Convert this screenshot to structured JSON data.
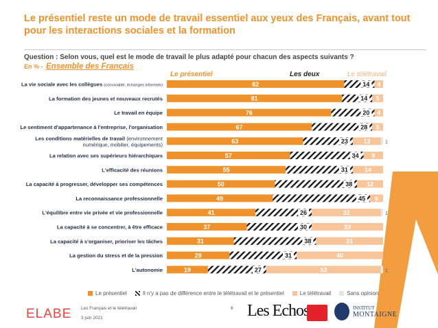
{
  "header": {
    "title": "Le présentiel reste un mode de travail essentiel aux yeux des Français, avant tout pour les interactions sociales et la formation",
    "question": "Question : Selon vous, quel est le mode de travail le plus adapté pour chacun des aspects suivants ?",
    "subtitle_prefix": "En % - ",
    "subtitle_sample": "Ensemble des Français"
  },
  "columns": {
    "presentiel": "Le présentiel",
    "deux": "Les deux",
    "teletravail": "Le télétravail"
  },
  "colors": {
    "title": "#f0922b",
    "presentiel": "#f0922b",
    "teletravail": "#f8c49a",
    "sans_opinion": "#e6e6e6",
    "hatch": "#1a1a1a",
    "deco_triangle": "#f0922b"
  },
  "chart_data": {
    "type": "bar",
    "stacked": true,
    "orientation": "horizontal",
    "unit": "%",
    "categories": [
      {
        "main": "La vie sociale avec les collègues",
        "detail": "(convivialité, échanges informels)",
        "detail_inline": true
      },
      {
        "main": "La formation des jeunes et nouveaux recrutés",
        "detail": ""
      },
      {
        "main": "Le travail en équipe",
        "detail": ""
      },
      {
        "main": "Le sentiment d'appartenance à l'entreprise, l'organisation",
        "detail": ""
      },
      {
        "main": "Les conditions matérielles de travail",
        "detail": "(environnement",
        "detail2": "numérique, mobilier, équipements)"
      },
      {
        "main": "La relation avec ses supérieurs hiérarchiques",
        "detail": ""
      },
      {
        "main": "L'efficacité des réunions",
        "detail": ""
      },
      {
        "main": "La capacité à progresser, développer ses compétences",
        "detail": ""
      },
      {
        "main": "La reconnaissance professionnelle",
        "detail": ""
      },
      {
        "main": "L'équilibre entre vie privée et vie professionnelle",
        "detail": ""
      },
      {
        "main": "La capacité à se concentrer, à être efficace",
        "detail": ""
      },
      {
        "main": "La capacité à s'organiser, prioriser les tâches",
        "detail": ""
      },
      {
        "main": "La gestion du stress et de la pression",
        "detail": ""
      },
      {
        "main": "L'autonomie",
        "detail": ""
      }
    ],
    "series": [
      {
        "name": "Le présentiel",
        "values": [
          82,
          81,
          76,
          67,
          63,
          57,
          55,
          50,
          49,
          41,
          37,
          31,
          29,
          19
        ]
      },
      {
        "name": "Il n'y a pas de différence entre le télétravail et le présentiel",
        "values": [
          14,
          14,
          20,
          28,
          23,
          34,
          31,
          38,
          45,
          26,
          30,
          38,
          31,
          27
        ]
      },
      {
        "name": "Le télétravail",
        "values": [
          4,
          5,
          4,
          5,
          13,
          9,
          14,
          12,
          6,
          32,
          33,
          31,
          40,
          53
        ]
      },
      {
        "name": "Sans opinion",
        "values": [
          0,
          0,
          0,
          0,
          1,
          0,
          0,
          0,
          0,
          1,
          0,
          0,
          0,
          1
        ]
      }
    ],
    "xlim": [
      0,
      100
    ],
    "legend_position": "bottom"
  },
  "legend": [
    {
      "label": "Le présentiel",
      "kind": "presentiel"
    },
    {
      "label": "Il n'y a pas de différence entre le télétravail et le présentiel",
      "kind": "hatch"
    },
    {
      "label": "Le télétravail",
      "kind": "teletravail"
    },
    {
      "label": "Sans opinion",
      "kind": "sans_opinion"
    }
  ],
  "footer": {
    "line1": "Les Français et le télétravail",
    "line2": "3 juin 2021",
    "page": "8",
    "elabe": "ELABE",
    "lesechos": "Les Echos",
    "institut1": "INSTITUT",
    "institut2": "MONTAIGNE"
  }
}
